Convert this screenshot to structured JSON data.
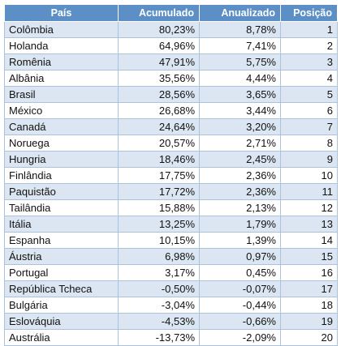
{
  "table": {
    "headers": [
      "País",
      "Acumulado",
      "Anualizado",
      "Posição"
    ],
    "rows": [
      {
        "country": "Colômbia",
        "accumulated": "80,23%",
        "annualized": "8,78%",
        "position": "1"
      },
      {
        "country": "Holanda",
        "accumulated": "64,96%",
        "annualized": "7,41%",
        "position": "2"
      },
      {
        "country": "Romênia",
        "accumulated": "47,91%",
        "annualized": "5,75%",
        "position": "3"
      },
      {
        "country": "Albânia",
        "accumulated": "35,56%",
        "annualized": "4,44%",
        "position": "4"
      },
      {
        "country": "Brasil",
        "accumulated": "28,56%",
        "annualized": "3,65%",
        "position": "5"
      },
      {
        "country": "México",
        "accumulated": "26,68%",
        "annualized": "3,44%",
        "position": "6"
      },
      {
        "country": "Canadá",
        "accumulated": "24,64%",
        "annualized": "3,20%",
        "position": "7"
      },
      {
        "country": "Noruega",
        "accumulated": "20,57%",
        "annualized": "2,71%",
        "position": "8"
      },
      {
        "country": "Hungria",
        "accumulated": "18,46%",
        "annualized": "2,45%",
        "position": "9"
      },
      {
        "country": "Finlândia",
        "accumulated": "17,75%",
        "annualized": "2,36%",
        "position": "10"
      },
      {
        "country": "Paquistão",
        "accumulated": "17,72%",
        "annualized": "2,36%",
        "position": "11"
      },
      {
        "country": "Tailândia",
        "accumulated": "15,88%",
        "annualized": "2,13%",
        "position": "12"
      },
      {
        "country": "Itália",
        "accumulated": "13,25%",
        "annualized": "1,79%",
        "position": "13"
      },
      {
        "country": "Espanha",
        "accumulated": "10,15%",
        "annualized": "1,39%",
        "position": "14"
      },
      {
        "country": "Áustria",
        "accumulated": "6,98%",
        "annualized": "0,97%",
        "position": "15"
      },
      {
        "country": "Portugal",
        "accumulated": "3,17%",
        "annualized": "0,45%",
        "position": "16"
      },
      {
        "country": "República Tcheca",
        "accumulated": "-0,50%",
        "annualized": "-0,07%",
        "position": "17"
      },
      {
        "country": "Bulgária",
        "accumulated": "-3,04%",
        "annualized": "-0,44%",
        "position": "18"
      },
      {
        "country": "Eslováquia",
        "accumulated": "-4,53%",
        "annualized": "-0,66%",
        "position": "19"
      },
      {
        "country": "Austrália",
        "accumulated": "-13,73%",
        "annualized": "-2,09%",
        "position": "20"
      }
    ]
  },
  "colors": {
    "header_bg": "#5b8fc6",
    "alt_row_bg": "#dce6f2",
    "border": "#a9c2dd"
  }
}
